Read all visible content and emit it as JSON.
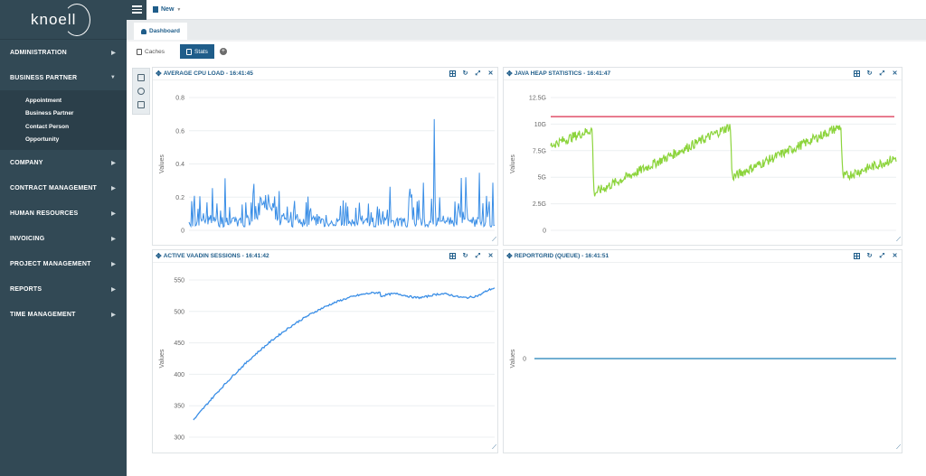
{
  "brand": {
    "logo": "knoell"
  },
  "sidebar": {
    "items": [
      {
        "label": "ADMINISTRATION",
        "expanded": false
      },
      {
        "label": "BUSINESS PARTNER",
        "expanded": true
      },
      {
        "label": "COMPANY",
        "expanded": false
      },
      {
        "label": "CONTRACT MANAGEMENT",
        "expanded": false
      },
      {
        "label": "HUMAN RESOURCES",
        "expanded": false
      },
      {
        "label": "INVOICING",
        "expanded": false
      },
      {
        "label": "PROJECT MANAGEMENT",
        "expanded": false
      },
      {
        "label": "REPORTS",
        "expanded": false
      },
      {
        "label": "TIME MANAGEMENT",
        "expanded": false
      }
    ],
    "submenu": [
      "Appointment",
      "Business Partner",
      "Contact Person",
      "Opportunity"
    ]
  },
  "topbar": {
    "new_label": "New"
  },
  "tabs": {
    "dashboard": "Dashboard"
  },
  "subtabs": {
    "caches": "Caches",
    "stats": "Stats"
  },
  "colors": {
    "sidebar": "#324955",
    "accent": "#1f5d8a",
    "cpu": "#3a8ee6",
    "heap": "#8cd43c",
    "heap_max": "#e0506a",
    "sessions": "#3a8ee6"
  },
  "panels": {
    "cpu": {
      "title": "AVERAGE CPU LOAD - 16:41:45"
    },
    "heap": {
      "title": "JAVA HEAP STATISTICS - 16:41:47"
    },
    "sessions": {
      "title": "ACTIVE VAADIN SESSIONS - 16:41:42"
    },
    "report": {
      "title": "REPORTGRID (QUEUE) - 16:41:51"
    }
  },
  "chart_data": [
    {
      "type": "line",
      "title": "AVERAGE CPU LOAD - 16:41:45",
      "ylabel": "Values",
      "ylim": [
        0,
        0.8
      ],
      "yticks": [
        "0",
        "0.2",
        "0.4",
        "0.6",
        "0.8"
      ],
      "series": [
        {
          "baseline": 0.02,
          "typical_peak": 0.2,
          "max": 0.67
        }
      ]
    },
    {
      "type": "line",
      "title": "JAVA HEAP STATISTICS - 16:41:47",
      "ylabel": "Values",
      "ylim": [
        0,
        12.5
      ],
      "yticks": [
        "0",
        "2.5G",
        "5G",
        "7.5G",
        "10G",
        "12.5G"
      ],
      "max_line": 10.7,
      "series": [
        {
          "sawtooth": [
            [
              0,
              8
            ],
            [
              0.12,
              9.5
            ],
            [
              0.125,
              3.5
            ],
            [
              0.52,
              9.8
            ],
            [
              0.525,
              5
            ],
            [
              0.84,
              9.8
            ],
            [
              0.845,
              5
            ],
            [
              1,
              6.8
            ]
          ]
        }
      ]
    },
    {
      "type": "line",
      "title": "ACTIVE VAADIN SESSIONS - 16:41:42",
      "ylabel": "Values",
      "ylim": [
        300,
        550
      ],
      "yticks": [
        "300",
        "350",
        "400",
        "450",
        "500",
        "550"
      ],
      "series": [
        {
          "start": 327,
          "end": 535,
          "plateau": 525
        }
      ]
    },
    {
      "type": "line",
      "title": "REPORTGRID (QUEUE) - 16:41:51",
      "ylabel": "Values",
      "yticks": [
        "0"
      ],
      "series": [
        {
          "value": 0
        }
      ]
    }
  ]
}
